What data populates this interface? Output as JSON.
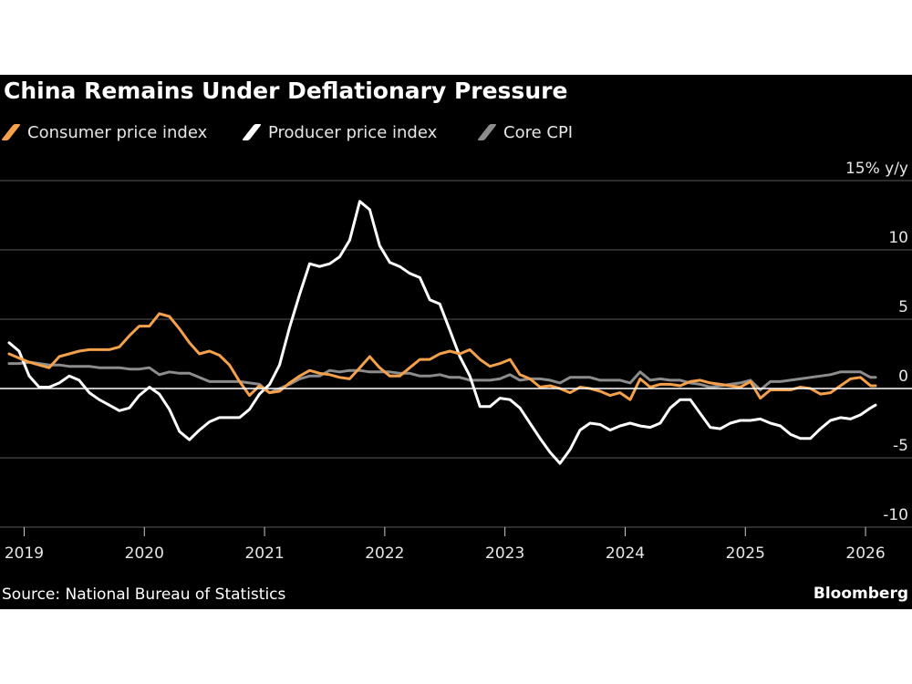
{
  "page": {
    "title": "China Remains Under Deflationary Pressure",
    "source": "Source: National Bureau of Statistics",
    "brand": "Bloomberg"
  },
  "colors": {
    "background": "#000000",
    "cpi": "#f5a04a",
    "ppi": "#ffffff",
    "core": "#8c8c8c",
    "grid": "#595959",
    "zero_line": "#ffffff"
  },
  "chart_data": {
    "type": "line",
    "title": "China Remains Under Deflationary Pressure",
    "y_unit_label": "15% y/y",
    "ylim": [
      -10,
      15
    ],
    "yticks": [
      -10,
      -5,
      0,
      5,
      10,
      15
    ],
    "ytick_labels": [
      "-10",
      "-5",
      "0",
      "5",
      "10",
      "15% y/y"
    ],
    "xlim": [
      2018.875,
      2026.083
    ],
    "xticks": [
      2019,
      2020,
      2021,
      2022,
      2023,
      2024,
      2025,
      2026
    ],
    "xtick_labels": [
      "2019",
      "2020",
      "2021",
      "2022",
      "2023",
      "2024",
      "2025",
      "2026"
    ],
    "grid": true,
    "legend_position": "top-left",
    "series": [
      {
        "name": "Consumer price index",
        "color_key": "cpi",
        "x": [
          2018.875,
          2018.958,
          2019.042,
          2019.125,
          2019.208,
          2019.292,
          2019.375,
          2019.458,
          2019.542,
          2019.625,
          2019.708,
          2019.792,
          2019.875,
          2019.958,
          2020.042,
          2020.125,
          2020.208,
          2020.292,
          2020.375,
          2020.458,
          2020.542,
          2020.625,
          2020.708,
          2020.792,
          2020.875,
          2020.958,
          2021.042,
          2021.125,
          2021.208,
          2021.292,
          2021.375,
          2021.458,
          2021.542,
          2021.625,
          2021.708,
          2021.792,
          2021.875,
          2021.958,
          2022.042,
          2022.125,
          2022.208,
          2022.292,
          2022.375,
          2022.458,
          2022.542,
          2022.625,
          2022.708,
          2022.792,
          2022.875,
          2022.958,
          2023.042,
          2023.125,
          2023.208,
          2023.292,
          2023.375,
          2023.458,
          2023.542,
          2023.625,
          2023.708,
          2023.792,
          2023.875,
          2023.958,
          2024.042,
          2024.125,
          2024.208,
          2024.292,
          2024.375,
          2024.458,
          2024.542,
          2024.625,
          2024.708,
          2024.792,
          2024.875,
          2024.958,
          2025.042,
          2025.125,
          2025.208,
          2025.292,
          2025.375,
          2025.458,
          2025.542,
          2025.625,
          2025.708,
          2025.792,
          2025.875,
          2025.958,
          2026.042,
          2026.083
        ],
        "y": [
          2.5,
          2.2,
          1.9,
          1.7,
          1.5,
          2.3,
          2.5,
          2.7,
          2.8,
          2.8,
          2.8,
          3.0,
          3.8,
          4.5,
          4.5,
          5.4,
          5.2,
          4.3,
          3.3,
          2.5,
          2.7,
          2.4,
          1.7,
          0.5,
          -0.5,
          0.2,
          -0.3,
          -0.2,
          0.4,
          0.9,
          1.3,
          1.1,
          1.0,
          0.8,
          0.7,
          1.5,
          2.3,
          1.5,
          0.9,
          0.9,
          1.5,
          2.1,
          2.1,
          2.5,
          2.7,
          2.5,
          2.8,
          2.1,
          1.6,
          1.8,
          2.1,
          1.0,
          0.7,
          0.1,
          0.2,
          0.0,
          -0.3,
          0.1,
          0.0,
          -0.2,
          -0.5,
          -0.3,
          -0.8,
          0.7,
          0.1,
          0.3,
          0.3,
          0.2,
          0.5,
          0.6,
          0.4,
          0.3,
          0.2,
          0.1,
          0.5,
          -0.7,
          -0.1,
          -0.1,
          -0.1,
          0.1,
          0.0,
          -0.4,
          -0.3,
          0.2,
          0.7,
          0.8,
          0.2,
          0.2
        ]
      },
      {
        "name": "Producer price index",
        "color_key": "ppi",
        "x": [
          2018.875,
          2018.958,
          2019.042,
          2019.125,
          2019.208,
          2019.292,
          2019.375,
          2019.458,
          2019.542,
          2019.625,
          2019.708,
          2019.792,
          2019.875,
          2019.958,
          2020.042,
          2020.125,
          2020.208,
          2020.292,
          2020.375,
          2020.458,
          2020.542,
          2020.625,
          2020.708,
          2020.792,
          2020.875,
          2020.958,
          2021.042,
          2021.125,
          2021.208,
          2021.292,
          2021.375,
          2021.458,
          2021.542,
          2021.625,
          2021.708,
          2021.792,
          2021.875,
          2021.958,
          2022.042,
          2022.125,
          2022.208,
          2022.292,
          2022.375,
          2022.458,
          2022.542,
          2022.625,
          2022.708,
          2022.792,
          2022.875,
          2022.958,
          2023.042,
          2023.125,
          2023.208,
          2023.292,
          2023.375,
          2023.458,
          2023.542,
          2023.625,
          2023.708,
          2023.792,
          2023.875,
          2023.958,
          2024.042,
          2024.125,
          2024.208,
          2024.292,
          2024.375,
          2024.458,
          2024.542,
          2024.625,
          2024.708,
          2024.792,
          2024.875,
          2024.958,
          2025.042,
          2025.125,
          2025.208,
          2025.292,
          2025.375,
          2025.458,
          2025.542,
          2025.625,
          2025.708,
          2025.792,
          2025.875,
          2025.958,
          2026.042,
          2026.083
        ],
        "y": [
          3.3,
          2.7,
          0.9,
          0.1,
          0.1,
          0.4,
          0.9,
          0.6,
          -0.3,
          -0.8,
          -1.2,
          -1.6,
          -1.4,
          -0.5,
          0.1,
          -0.4,
          -1.5,
          -3.1,
          -3.7,
          -3.0,
          -2.4,
          -2.1,
          -2.1,
          -2.1,
          -1.5,
          -0.4,
          0.3,
          1.7,
          4.4,
          6.8,
          9.0,
          8.8,
          9.0,
          9.5,
          10.7,
          13.5,
          12.9,
          10.3,
          9.1,
          8.8,
          8.3,
          8.0,
          6.4,
          6.1,
          4.2,
          2.3,
          0.9,
          -1.3,
          -1.3,
          -0.7,
          -0.8,
          -1.4,
          -2.5,
          -3.6,
          -4.6,
          -5.4,
          -4.4,
          -3.0,
          -2.5,
          -2.6,
          -3.0,
          -2.7,
          -2.5,
          -2.7,
          -2.8,
          -2.5,
          -1.4,
          -0.8,
          -0.8,
          -1.8,
          -2.8,
          -2.9,
          -2.5,
          -2.3,
          -2.3,
          -2.2,
          -2.5,
          -2.7,
          -3.3,
          -3.6,
          -3.6,
          -2.9,
          -2.3,
          -2.1,
          -2.2,
          -1.9,
          -1.4,
          -1.2
        ]
      },
      {
        "name": "Core CPI",
        "color_key": "core",
        "x": [
          2018.875,
          2018.958,
          2019.042,
          2019.125,
          2019.208,
          2019.292,
          2019.375,
          2019.458,
          2019.542,
          2019.625,
          2019.708,
          2019.792,
          2019.875,
          2019.958,
          2020.042,
          2020.125,
          2020.208,
          2020.292,
          2020.375,
          2020.458,
          2020.542,
          2020.625,
          2020.708,
          2020.792,
          2020.875,
          2020.958,
          2021.042,
          2021.125,
          2021.208,
          2021.292,
          2021.375,
          2021.458,
          2021.542,
          2021.625,
          2021.708,
          2021.792,
          2021.875,
          2021.958,
          2022.042,
          2022.125,
          2022.208,
          2022.292,
          2022.375,
          2022.458,
          2022.542,
          2022.625,
          2022.708,
          2022.792,
          2022.875,
          2022.958,
          2023.042,
          2023.125,
          2023.208,
          2023.292,
          2023.375,
          2023.458,
          2023.542,
          2023.625,
          2023.708,
          2023.792,
          2023.875,
          2023.958,
          2024.042,
          2024.125,
          2024.208,
          2024.292,
          2024.375,
          2024.458,
          2024.542,
          2024.625,
          2024.708,
          2024.792,
          2024.875,
          2024.958,
          2025.042,
          2025.125,
          2025.208,
          2025.292,
          2025.375,
          2025.458,
          2025.542,
          2025.625,
          2025.708,
          2025.792,
          2025.875,
          2025.958,
          2026.042,
          2026.083
        ],
        "y": [
          1.8,
          1.8,
          1.9,
          1.8,
          1.7,
          1.7,
          1.6,
          1.6,
          1.6,
          1.5,
          1.5,
          1.5,
          1.4,
          1.4,
          1.5,
          1.0,
          1.2,
          1.1,
          1.1,
          0.8,
          0.5,
          0.5,
          0.5,
          0.5,
          0.4,
          0.3,
          -0.3,
          0.0,
          0.3,
          0.7,
          0.9,
          0.9,
          1.3,
          1.2,
          1.3,
          1.3,
          1.2,
          1.2,
          1.2,
          1.1,
          1.1,
          0.9,
          0.9,
          1.0,
          0.8,
          0.8,
          0.6,
          0.6,
          0.6,
          0.7,
          1.0,
          0.6,
          0.7,
          0.7,
          0.6,
          0.4,
          0.8,
          0.8,
          0.8,
          0.6,
          0.6,
          0.6,
          0.4,
          1.2,
          0.6,
          0.7,
          0.6,
          0.6,
          0.4,
          0.3,
          0.1,
          0.2,
          0.3,
          0.4,
          0.6,
          -0.1,
          0.5,
          0.5,
          0.6,
          0.7,
          0.8,
          0.9,
          1.0,
          1.2,
          1.2,
          1.2,
          0.8,
          0.8
        ]
      }
    ]
  }
}
